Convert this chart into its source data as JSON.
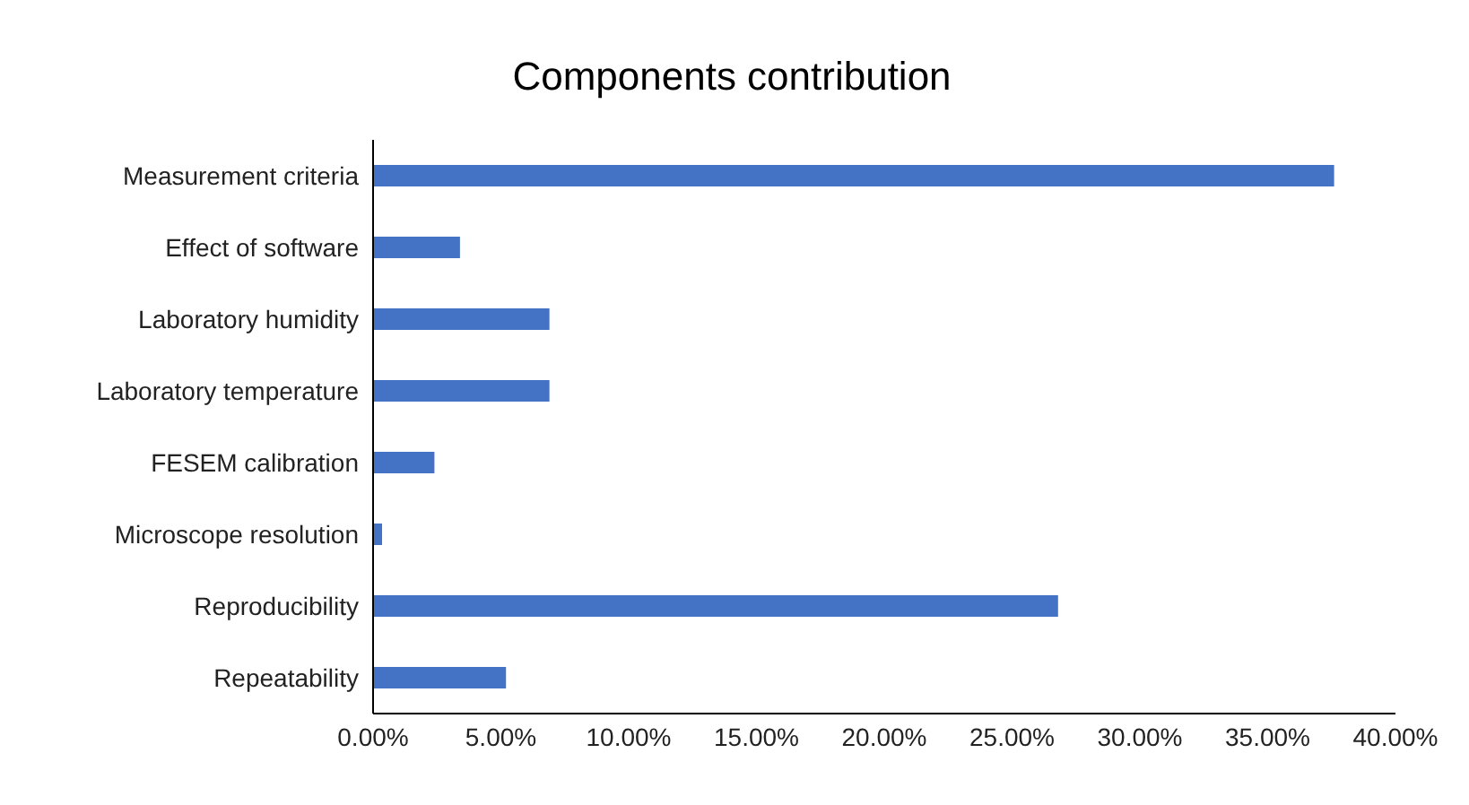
{
  "chart_data": {
    "type": "bar",
    "orientation": "horizontal",
    "title": "Components contribution",
    "categories": [
      "Measurement criteria",
      "Effect of software",
      "Laboratory humidity",
      "Laboratory temperature",
      "FESEM calibration",
      "Microscope resolution",
      "Reproducibility",
      "Repeatability"
    ],
    "values": [
      37.6,
      3.4,
      6.9,
      6.9,
      2.4,
      0.35,
      26.8,
      5.2
    ],
    "color": "#4472c4",
    "xlim": [
      0,
      40
    ],
    "xticks": [
      {
        "value": 0,
        "label": "0.00%"
      },
      {
        "value": 5,
        "label": "5.00%"
      },
      {
        "value": 10,
        "label": "10.00%"
      },
      {
        "value": 15,
        "label": "15.00%"
      },
      {
        "value": 20,
        "label": "20.00%"
      },
      {
        "value": 25,
        "label": "25.00%"
      },
      {
        "value": 30,
        "label": "30.00%"
      },
      {
        "value": 35,
        "label": "35.00%"
      },
      {
        "value": 40,
        "label": "40.00%"
      }
    ],
    "grid": false,
    "legend": false
  }
}
